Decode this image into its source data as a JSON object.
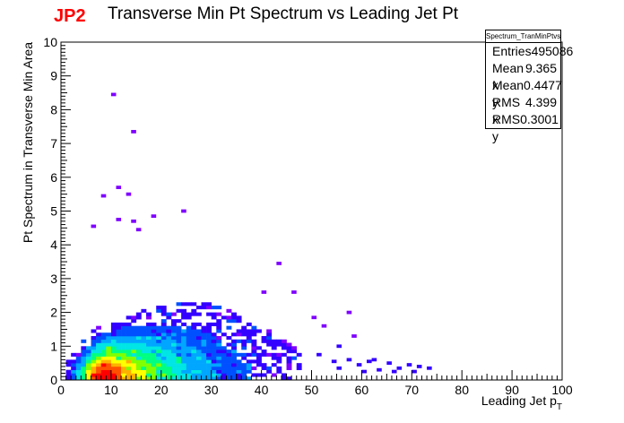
{
  "tag": "JP2",
  "title": "Transverse Min Pt Spectrum vs Leading Jet Pt",
  "stats": {
    "name": "Spectrum_TranMinPtvsLeadJetPt",
    "rows": [
      {
        "label": "Entries",
        "value": "495086"
      },
      {
        "label": "Mean x",
        "value": "9.365"
      },
      {
        "label": "Mean y",
        "value": "0.4477"
      },
      {
        "label": "RMS x",
        "value": "4.399"
      },
      {
        "label": "RMS y",
        "value": "0.3001"
      }
    ]
  },
  "colors": {
    "tag": "#ff0000",
    "palette": [
      "#7f00ff",
      "#3300ff",
      "#0050ff",
      "#00a6ff",
      "#00e5e5",
      "#00ff80",
      "#80ff00",
      "#ffff00",
      "#ffb000",
      "#ff5000",
      "#ff0000"
    ]
  },
  "chart_data": {
    "type": "heatmap",
    "title": "Transverse Min Pt Spectrum vs Leading Jet Pt",
    "xlabel": "Leading Jet p",
    "xlabel_sub": "T",
    "ylabel": "Pt Spectrum in Transverse Min Area",
    "xlim": [
      0,
      100
    ],
    "ylim": [
      0,
      10
    ],
    "x_ticks": [
      "0",
      "10",
      "20",
      "30",
      "40",
      "50",
      "60",
      "70",
      "80",
      "90",
      "100"
    ],
    "y_ticks": [
      "0",
      "1",
      "2",
      "3",
      "4",
      "5",
      "6",
      "7",
      "8",
      "9",
      "10"
    ],
    "bin_width": {
      "x": 1,
      "y": 0.1
    },
    "density_model": {
      "description": "approximate 2D density shape estimated from the colored cell region",
      "peak": {
        "x": 9,
        "y": 0.3
      },
      "x_extent_core": [
        2,
        45
      ],
      "y_extent_core": [
        0,
        3.6
      ]
    },
    "isolated_cells": [
      {
        "x": 10.5,
        "y": 8.45
      },
      {
        "x": 14.5,
        "y": 7.35
      },
      {
        "x": 11.5,
        "y": 5.7
      },
      {
        "x": 13.5,
        "y": 5.5
      },
      {
        "x": 8.5,
        "y": 5.45
      },
      {
        "x": 24.5,
        "y": 5.0
      },
      {
        "x": 18.5,
        "y": 4.85
      },
      {
        "x": 11.5,
        "y": 4.75
      },
      {
        "x": 14.5,
        "y": 4.7
      },
      {
        "x": 6.5,
        "y": 4.55
      },
      {
        "x": 15.5,
        "y": 4.45
      },
      {
        "x": 43.5,
        "y": 3.45
      },
      {
        "x": 46.5,
        "y": 2.6
      },
      {
        "x": 40.5,
        "y": 2.6
      },
      {
        "x": 57.5,
        "y": 2.0
      },
      {
        "x": 50.5,
        "y": 1.85
      },
      {
        "x": 52.5,
        "y": 1.6
      },
      {
        "x": 55.5,
        "y": 1.0
      },
      {
        "x": 58.5,
        "y": 1.3
      },
      {
        "x": 51.5,
        "y": 0.75
      },
      {
        "x": 54.5,
        "y": 0.55
      },
      {
        "x": 57.5,
        "y": 0.6
      },
      {
        "x": 59.5,
        "y": 0.45
      },
      {
        "x": 61.5,
        "y": 0.55
      },
      {
        "x": 63.5,
        "y": 0.3
      },
      {
        "x": 65.5,
        "y": 0.5
      },
      {
        "x": 67.5,
        "y": 0.35
      },
      {
        "x": 69.5,
        "y": 0.45
      },
      {
        "x": 71.5,
        "y": 0.4
      },
      {
        "x": 73.5,
        "y": 0.35
      },
      {
        "x": 55.5,
        "y": 0.35
      },
      {
        "x": 60.5,
        "y": 0.25
      },
      {
        "x": 62.5,
        "y": 0.6
      },
      {
        "x": 66.5,
        "y": 0.25
      },
      {
        "x": 70.5,
        "y": 0.25
      }
    ],
    "grid": false,
    "legend": "top-right stats box"
  }
}
